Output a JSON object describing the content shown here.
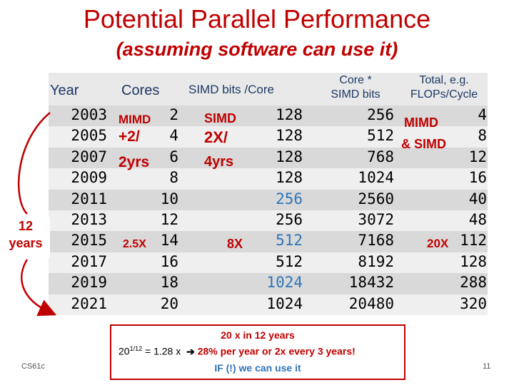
{
  "title": "Potential Parallel Performance",
  "subtitle": "(assuming software can use it)",
  "headers": {
    "year": "Year",
    "cores": "Cores",
    "simd_bits": "SIMD bits /Core",
    "core_simd_1": "Core *",
    "core_simd_2": "SIMD bits",
    "total_1": "Total, e.g.",
    "total_2": "FLOPs/Cycle"
  },
  "rows": [
    {
      "year": "2003",
      "cores": "2",
      "simd": "128",
      "core_simd": "256",
      "total": "4"
    },
    {
      "year": "2005",
      "cores": "4",
      "simd": "128",
      "core_simd": "512",
      "total": "8"
    },
    {
      "year": "2007",
      "cores": "6",
      "simd": "128",
      "core_simd": "768",
      "total": "12"
    },
    {
      "year": "2009",
      "cores": "8",
      "simd": "128",
      "core_simd": "1024",
      "total": "16"
    },
    {
      "year": "2011",
      "cores": "10",
      "simd": "256",
      "core_simd": "2560",
      "total": "40"
    },
    {
      "year": "2013",
      "cores": "12",
      "simd": "256",
      "core_simd": "3072",
      "total": "48"
    },
    {
      "year": "2015",
      "cores": "14",
      "simd": "512",
      "core_simd": "7168",
      "total": "112"
    },
    {
      "year": "2017",
      "cores": "16",
      "simd": "512",
      "core_simd": "8192",
      "total": "128"
    },
    {
      "year": "2019",
      "cores": "18",
      "simd": "1024",
      "core_simd": "18432",
      "total": "288"
    },
    {
      "year": "2021",
      "cores": "20",
      "simd": "1024",
      "core_simd": "20480",
      "total": "320"
    }
  ],
  "annotations": {
    "mimd_label": "MIMD",
    "mimd_rate_1": "+2/",
    "mimd_rate_2": "2yrs",
    "simd_label": "SIMD",
    "simd_rate_1": "2X/",
    "simd_rate_2": "4yrs",
    "cores_growth": "2.5X",
    "simd_growth": "8X",
    "total_label_1": "MIMD",
    "total_label_2": "& SIMD",
    "total_growth": "20X",
    "side_1": "12",
    "side_2": "years"
  },
  "footer": {
    "line1": "20 x in 12 years",
    "formula_base": "20",
    "formula_exp": "1/12",
    "formula_rest": " = 1.28 x",
    "arrow": "➔",
    "claim": " 28% per year or 2x every 3 years!",
    "line3": "IF (!) we can use it",
    "course": "CS61c",
    "page": "11"
  },
  "colors": {
    "red": "#c00000",
    "blue": "#2e75b6",
    "header": "#1f3864",
    "stripe_dark": "#d9d9d9",
    "stripe_light": "#efefef",
    "header_bg": "#e9e9e9"
  }
}
